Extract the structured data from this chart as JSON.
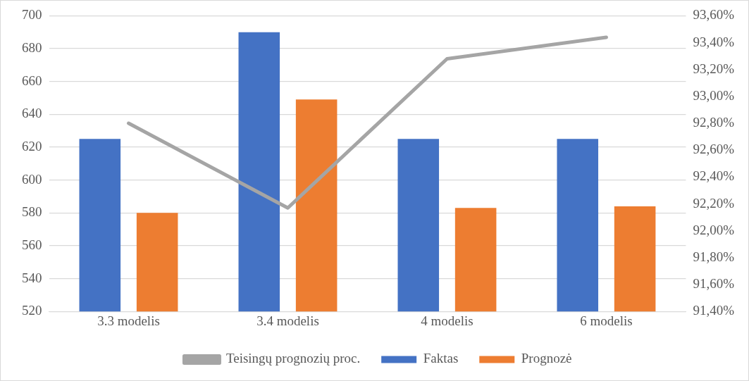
{
  "chart_data": {
    "type": "bar",
    "categories": [
      "3.3 modelis",
      "3.4 modelis",
      "4 modelis",
      "6 modelis"
    ],
    "series": [
      {
        "name": "Faktas",
        "color": "#4472c4",
        "values": [
          625,
          690,
          625,
          625
        ]
      },
      {
        "name": "Prognozė",
        "color": "#ed7d31",
        "values": [
          580,
          649,
          583,
          584
        ]
      },
      {
        "name": "Teisingų prognozių proc.",
        "type": "line",
        "axis": "y2",
        "color": "#a5a5a5",
        "values": [
          92.8,
          92.17,
          93.28,
          93.44
        ]
      }
    ],
    "ylim": [
      520,
      700
    ],
    "yticks": [
      520,
      540,
      560,
      580,
      600,
      620,
      640,
      660,
      680,
      700
    ],
    "y2lim": [
      91.4,
      93.6
    ],
    "y2ticks": [
      {
        "value": 91.4,
        "label": "91,40%"
      },
      {
        "value": 91.6,
        "label": "91,60%"
      },
      {
        "value": 91.8,
        "label": "91,80%"
      },
      {
        "value": 92.0,
        "label": "92,00%"
      },
      {
        "value": 92.2,
        "label": "92,20%"
      },
      {
        "value": 92.4,
        "label": "92,40%"
      },
      {
        "value": 92.6,
        "label": "92,60%"
      },
      {
        "value": 92.8,
        "label": "92,80%"
      },
      {
        "value": 93.0,
        "label": "93,00%"
      },
      {
        "value": 93.2,
        "label": "93,20%"
      },
      {
        "value": 93.4,
        "label": "93,40%"
      },
      {
        "value": 93.6,
        "label": "93,60%"
      }
    ],
    "grid": "y",
    "legend": "bottom",
    "marker": "none"
  }
}
